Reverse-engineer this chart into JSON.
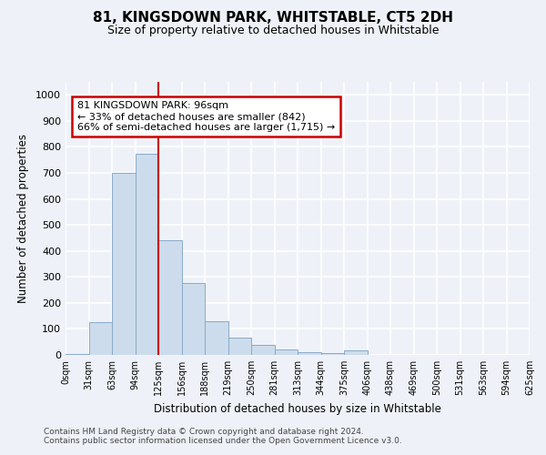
{
  "title": "81, KINGSDOWN PARK, WHITSTABLE, CT5 2DH",
  "subtitle": "Size of property relative to detached houses in Whitstable",
  "xlabel": "Distribution of detached houses by size in Whitstable",
  "ylabel": "Number of detached properties",
  "bar_color": "#ccdcec",
  "bar_edge_color": "#8aaac8",
  "bin_labels": [
    "0sqm",
    "31sqm",
    "63sqm",
    "94sqm",
    "125sqm",
    "156sqm",
    "188sqm",
    "219sqm",
    "250sqm",
    "281sqm",
    "313sqm",
    "344sqm",
    "375sqm",
    "406sqm",
    "438sqm",
    "469sqm",
    "500sqm",
    "531sqm",
    "563sqm",
    "594sqm",
    "625sqm"
  ],
  "bar_values": [
    5,
    127,
    700,
    775,
    440,
    275,
    130,
    68,
    38,
    22,
    12,
    8,
    18,
    0,
    0,
    0,
    0,
    0,
    0,
    0
  ],
  "ylim": [
    0,
    1050
  ],
  "yticks": [
    0,
    100,
    200,
    300,
    400,
    500,
    600,
    700,
    800,
    900,
    1000
  ],
  "vline_x_index": 3,
  "annotation_text": "81 KINGSDOWN PARK: 96sqm\n← 33% of detached houses are smaller (842)\n66% of semi-detached houses are larger (1,715) →",
  "annotation_box_color": "#ffffff",
  "annotation_box_edge_color": "#cc0000",
  "footnote1": "Contains HM Land Registry data © Crown copyright and database right 2024.",
  "footnote2": "Contains public sector information licensed under the Open Government Licence v3.0.",
  "background_color": "#eef2f8",
  "grid_color": "#ffffff",
  "title_fontsize": 11,
  "subtitle_fontsize": 9
}
